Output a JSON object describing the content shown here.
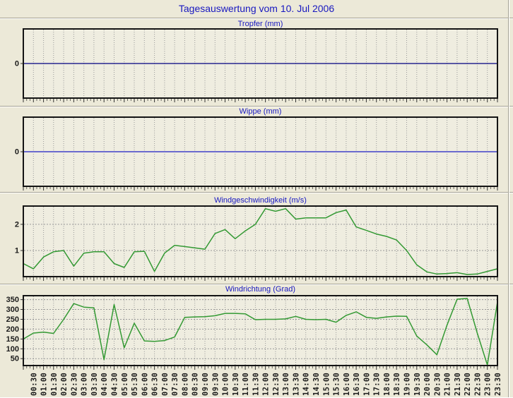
{
  "page": {
    "title": "Tagesauswertung vom 10. Jul 2006"
  },
  "colors": {
    "background": "#ece9d8",
    "plot_background": "#efede0",
    "title_blue": "#1818c0",
    "grid": "#999999",
    "axis_border": "#141414",
    "tick": "#333333",
    "label_text": "#1a1a1a",
    "tropfer_line": "#000080",
    "wippe_line": "#6a6ace",
    "wind_line": "#339933"
  },
  "x_axis": {
    "labels": [
      "00:30",
      "01:00",
      "01:30",
      "02:00",
      "02:30",
      "03:00",
      "03:30",
      "04:00",
      "04:30",
      "05:00",
      "05:30",
      "06:00",
      "06:30",
      "07:00",
      "07:30",
      "08:00",
      "08:30",
      "09:00",
      "09:30",
      "10:00",
      "10:30",
      "11:00",
      "11:30",
      "12:00",
      "12:30",
      "13:00",
      "13:30",
      "14:00",
      "14:30",
      "15:00",
      "15:30",
      "16:00",
      "16:30",
      "17:00",
      "17:30",
      "18:00",
      "18:30",
      "19:00",
      "19:30",
      "20:00",
      "20:30",
      "21:00",
      "21:30",
      "22:00",
      "22:30",
      "23:00",
      "23:30"
    ],
    "interval_minutes": 30
  },
  "chart_data": [
    {
      "type": "line",
      "id": "tropfer",
      "title": "Tropfer (mm)",
      "ylabel": "",
      "yticks": [
        0
      ],
      "ylim": [
        -1,
        1
      ],
      "ygrid": false,
      "line_color": "#000080",
      "line_width": 1.2,
      "values": [
        0,
        0,
        0,
        0,
        0,
        0,
        0,
        0,
        0,
        0,
        0,
        0,
        0,
        0,
        0,
        0,
        0,
        0,
        0,
        0,
        0,
        0,
        0,
        0,
        0,
        0,
        0,
        0,
        0,
        0,
        0,
        0,
        0,
        0,
        0,
        0,
        0,
        0,
        0,
        0,
        0,
        0,
        0,
        0,
        0,
        0,
        0,
        0
      ]
    },
    {
      "type": "line",
      "id": "wippe",
      "title": "Wippe (mm)",
      "ylabel": "",
      "yticks": [
        0
      ],
      "ylim": [
        -1,
        1
      ],
      "ygrid": false,
      "line_color": "#6a6ace",
      "line_width": 2,
      "values": [
        0,
        0,
        0,
        0,
        0,
        0,
        0,
        0,
        0,
        0,
        0,
        0,
        0,
        0,
        0,
        0,
        0,
        0,
        0,
        0,
        0,
        0,
        0,
        0,
        0,
        0,
        0,
        0,
        0,
        0,
        0,
        0,
        0,
        0,
        0,
        0,
        0,
        0,
        0,
        0,
        0,
        0,
        0,
        0,
        0,
        0,
        0,
        0
      ]
    },
    {
      "type": "line",
      "id": "windgeschwindigkeit",
      "title": "Windgeschwindigkeit (m/s)",
      "ylabel": "",
      "yticks": [
        1,
        2
      ],
      "ylim": [
        0,
        2.7
      ],
      "ygrid": true,
      "line_color": "#339933",
      "line_width": 1.5,
      "values": [
        0.5,
        0.3,
        0.75,
        0.95,
        1.0,
        0.4,
        0.9,
        0.95,
        0.95,
        0.5,
        0.35,
        0.95,
        0.97,
        0.2,
        0.9,
        1.2,
        1.15,
        1.1,
        1.05,
        1.65,
        1.8,
        1.45,
        1.75,
        2.0,
        2.6,
        2.5,
        2.6,
        2.2,
        2.25,
        2.25,
        2.25,
        2.45,
        2.55,
        1.9,
        1.77,
        1.63,
        1.54,
        1.4,
        1.0,
        0.45,
        0.18,
        0.1,
        0.12,
        0.15,
        0.08,
        0.1,
        0.2,
        0.3
      ]
    },
    {
      "type": "line",
      "id": "windrichtung",
      "title": "Windrichtung (Grad)",
      "ylabel": "",
      "yticks": [
        50,
        100,
        150,
        200,
        250,
        300,
        350
      ],
      "ylim": [
        15,
        370
      ],
      "ygrid": true,
      "show_x_labels": true,
      "line_color": "#339933",
      "line_width": 1.5,
      "values": [
        150,
        180,
        185,
        178,
        250,
        330,
        312,
        308,
        45,
        325,
        105,
        230,
        140,
        138,
        142,
        160,
        260,
        262,
        263,
        268,
        280,
        280,
        278,
        248,
        250,
        250,
        252,
        265,
        250,
        248,
        250,
        235,
        270,
        288,
        260,
        255,
        262,
        266,
        265,
        165,
        120,
        70,
        220,
        352,
        356,
        180,
        15,
        338
      ]
    }
  ]
}
